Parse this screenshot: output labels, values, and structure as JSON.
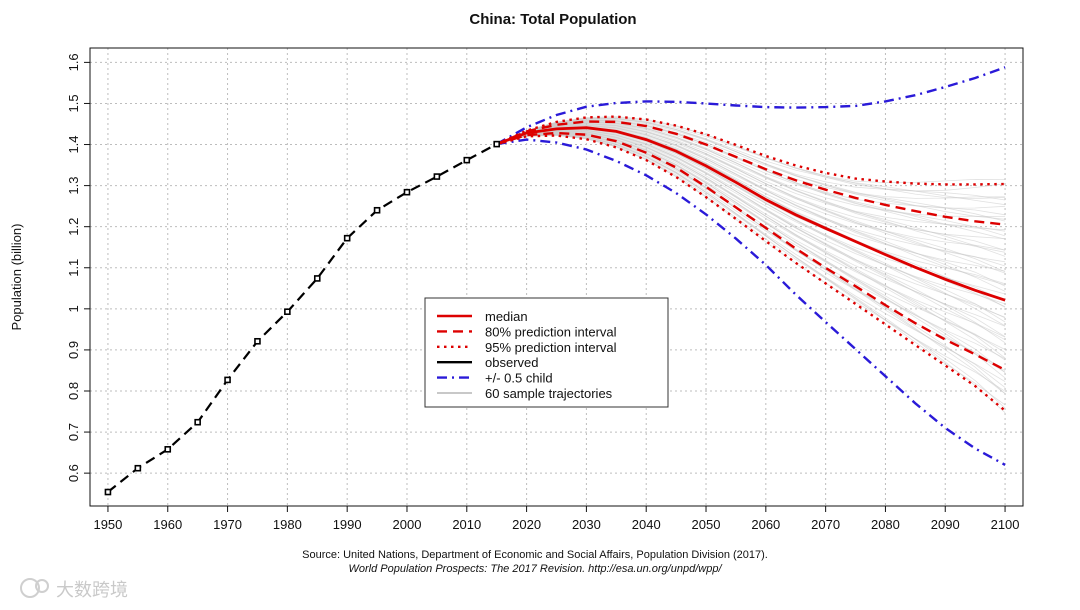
{
  "chart_data": {
    "type": "line",
    "title": "China: Total Population",
    "xlabel": "",
    "ylabel": "Population (billion)",
    "xlim": [
      1947,
      2103
    ],
    "ylim": [
      0.52,
      1.635
    ],
    "x_ticks": [
      1950,
      1960,
      1970,
      1980,
      1990,
      2000,
      2010,
      2020,
      2030,
      2040,
      2050,
      2060,
      2070,
      2080,
      2090,
      2100
    ],
    "y_ticks": [
      0.6,
      0.7,
      0.8,
      0.9,
      1.0,
      1.1,
      1.2,
      1.3,
      1.4,
      1.5,
      1.6
    ],
    "y_tick_labels": [
      "0.6",
      "0.7",
      "0.8",
      "0.9",
      "1",
      "1.1",
      "1.2",
      "1.3",
      "1.4",
      "1.5",
      "1.6"
    ],
    "grid": true,
    "legend_position": "center",
    "series": [
      {
        "name": "observed",
        "color": "#000000",
        "style": "solid",
        "markers": true,
        "x": [
          1950,
          1955,
          1960,
          1965,
          1970,
          1975,
          1980,
          1985,
          1990,
          1995,
          2000,
          2005,
          2010,
          2015
        ],
        "y": [
          0.554,
          0.612,
          0.658,
          0.724,
          0.827,
          0.921,
          0.993,
          1.074,
          1.172,
          1.24,
          1.284,
          1.322,
          1.362,
          1.401
        ]
      },
      {
        "name": "median",
        "color": "#dd0000",
        "style": "solid",
        "x": [
          2015,
          2020,
          2025,
          2030,
          2035,
          2040,
          2045,
          2050,
          2055,
          2060,
          2065,
          2070,
          2075,
          2080,
          2085,
          2090,
          2095,
          2100
        ],
        "y": [
          1.401,
          1.428,
          1.438,
          1.441,
          1.432,
          1.412,
          1.384,
          1.348,
          1.308,
          1.266,
          1.229,
          1.196,
          1.164,
          1.132,
          1.101,
          1.072,
          1.045,
          1.021
        ]
      },
      {
        "name": "80% prediction interval",
        "color": "#dd0000",
        "style": "dashed",
        "upper": {
          "x": [
            2015,
            2020,
            2025,
            2030,
            2035,
            2040,
            2045,
            2050,
            2055,
            2060,
            2065,
            2070,
            2075,
            2080,
            2085,
            2090,
            2095,
            2100
          ],
          "y": [
            1.401,
            1.432,
            1.448,
            1.456,
            1.455,
            1.445,
            1.426,
            1.4,
            1.37,
            1.34,
            1.313,
            1.29,
            1.27,
            1.253,
            1.238,
            1.224,
            1.213,
            1.205
          ]
        },
        "lower": {
          "x": [
            2015,
            2020,
            2025,
            2030,
            2035,
            2040,
            2045,
            2050,
            2055,
            2060,
            2065,
            2070,
            2075,
            2080,
            2085,
            2090,
            2095,
            2100
          ],
          "y": [
            1.401,
            1.423,
            1.428,
            1.424,
            1.408,
            1.38,
            1.344,
            1.297,
            1.247,
            1.197,
            1.147,
            1.1,
            1.055,
            1.009,
            0.965,
            0.925,
            0.889,
            0.851
          ]
        }
      },
      {
        "name": "95% prediction interval",
        "color": "#dd0000",
        "style": "dotted",
        "upper": {
          "x": [
            2015,
            2020,
            2025,
            2030,
            2035,
            2040,
            2045,
            2050,
            2055,
            2060,
            2065,
            2070,
            2075,
            2080,
            2085,
            2090,
            2095,
            2100
          ],
          "y": [
            1.401,
            1.434,
            1.455,
            1.466,
            1.468,
            1.461,
            1.446,
            1.425,
            1.399,
            1.372,
            1.349,
            1.331,
            1.317,
            1.31,
            1.305,
            1.303,
            1.303,
            1.304
          ]
        },
        "lower": {
          "x": [
            2015,
            2020,
            2025,
            2030,
            2035,
            2040,
            2045,
            2050,
            2055,
            2060,
            2065,
            2070,
            2075,
            2080,
            2085,
            2090,
            2095,
            2100
          ],
          "y": [
            1.401,
            1.42,
            1.422,
            1.413,
            1.393,
            1.362,
            1.321,
            1.272,
            1.219,
            1.165,
            1.112,
            1.062,
            1.012,
            0.962,
            0.912,
            0.862,
            0.812,
            0.752
          ]
        }
      },
      {
        "name": "+/- 0.5 child",
        "color": "#2a1ad8",
        "style": "dashdot",
        "upper": {
          "x": [
            2015,
            2020,
            2025,
            2030,
            2035,
            2040,
            2045,
            2050,
            2055,
            2060,
            2065,
            2070,
            2075,
            2080,
            2085,
            2090,
            2095,
            2100
          ],
          "y": [
            1.401,
            1.442,
            1.472,
            1.492,
            1.501,
            1.505,
            1.504,
            1.5,
            1.495,
            1.491,
            1.49,
            1.491,
            1.494,
            1.505,
            1.52,
            1.54,
            1.562,
            1.588
          ]
        },
        "lower": {
          "x": [
            2015,
            2020,
            2025,
            2030,
            2035,
            2040,
            2045,
            2050,
            2055,
            2060,
            2065,
            2070,
            2075,
            2080,
            2085,
            2090,
            2095,
            2100
          ],
          "y": [
            1.401,
            1.412,
            1.405,
            1.388,
            1.36,
            1.325,
            1.282,
            1.23,
            1.171,
            1.107,
            1.035,
            0.968,
            0.902,
            0.836,
            0.77,
            0.71,
            0.66,
            0.62
          ]
        }
      },
      {
        "name": "60 sample trajectories",
        "color": "#c8c8c8",
        "style": "solid"
      }
    ]
  },
  "source_line1": "Source: United Nations, Department of Economic and Social Affairs, Population Division (2017).",
  "source_line2": "World Population Prospects: The 2017 Revision. http://esa.un.org/unpd/wpp/",
  "watermark": "大数跨境"
}
